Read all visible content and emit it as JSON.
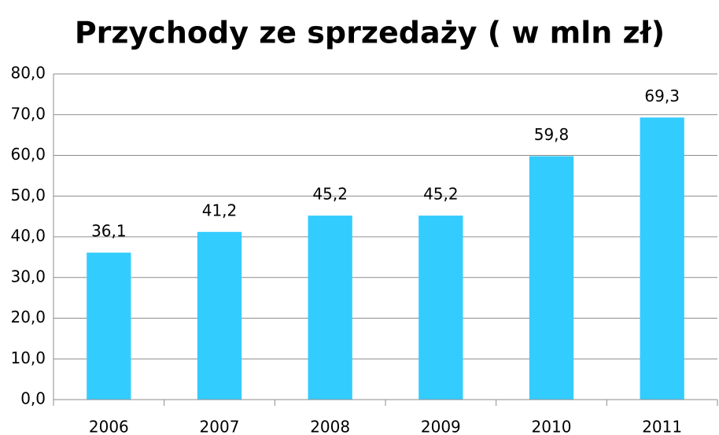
{
  "chart_data": {
    "type": "bar",
    "title": "Przychody ze sprzedaży ( w mln zł)",
    "categories": [
      "2006",
      "2007",
      "2008",
      "2009",
      "2010",
      "2011"
    ],
    "values": [
      36.1,
      41.2,
      45.2,
      45.2,
      59.8,
      69.3
    ],
    "value_labels": [
      "36,1",
      "41,2",
      "45,2",
      "45,2",
      "59,8",
      "69,3"
    ],
    "color": "#33ccff",
    "ylim": [
      0,
      80
    ],
    "yticks": [
      {
        "value": 0,
        "label": "0,0"
      },
      {
        "value": 10,
        "label": "10,0"
      },
      {
        "value": 20,
        "label": "20,0"
      },
      {
        "value": 30,
        "label": "30,0"
      },
      {
        "value": 40,
        "label": "40,0"
      },
      {
        "value": 50,
        "label": "50,0"
      },
      {
        "value": 60,
        "label": "60,0"
      },
      {
        "value": 70,
        "label": "70,0"
      },
      {
        "value": 80,
        "label": "80,0"
      }
    ],
    "grid": true
  }
}
